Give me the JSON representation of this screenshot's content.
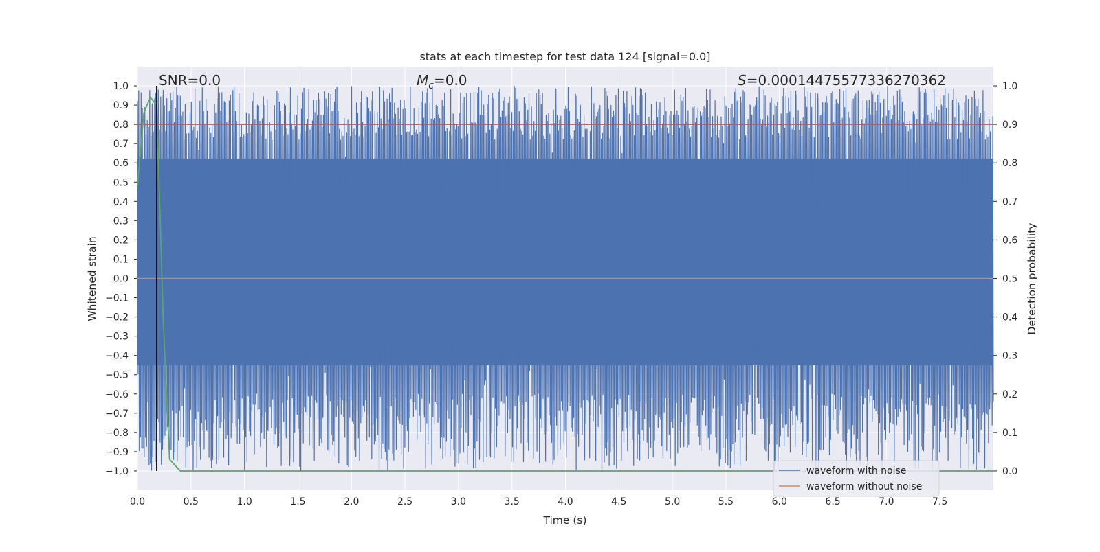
{
  "chart_data": {
    "type": "line",
    "title": "stats at each timestep for test data 124 [signal=0.0]",
    "xlabel": "Time (s)",
    "ylabel_left": "Whitened strain",
    "ylabel_right": "Detection probability",
    "xlim": [
      0.0,
      8.0
    ],
    "ylim_left": [
      -1.1,
      1.1
    ],
    "ylim_right": [
      -0.05,
      1.05
    ],
    "grid": true,
    "legend_position": "lower right",
    "x_ticks": [
      "0.0",
      "0.5",
      "1.0",
      "1.5",
      "2.0",
      "2.5",
      "3.0",
      "3.5",
      "4.0",
      "4.5",
      "5.0",
      "5.5",
      "6.0",
      "6.5",
      "7.0",
      "7.5"
    ],
    "y_left_ticks": [
      "1.0",
      "0.9",
      "0.8",
      "0.7",
      "0.6",
      "0.5",
      "0.4",
      "0.3",
      "0.2",
      "0.1",
      "0.0",
      "−0.1",
      "−0.2",
      "−0.3",
      "−0.4",
      "−0.5",
      "−0.6",
      "−0.7",
      "−0.8",
      "−0.9",
      "−1.0"
    ],
    "y_right_ticks": [
      "1.0",
      "0.9",
      "0.8",
      "0.7",
      "0.6",
      "0.5",
      "0.4",
      "0.3",
      "0.2",
      "0.1",
      "0.0"
    ],
    "annotations": {
      "snr": "SNR=0.0",
      "mc_symbol": "M",
      "mc_sub": "c",
      "mc_value": "=0.0",
      "s_symbol": "S",
      "s_value": "=0.00014475577336270362"
    },
    "vertical_marker_x": 0.18,
    "series": [
      {
        "name": "waveform with noise",
        "color": "#4c72b0",
        "axis": "left",
        "description": "dense noise trace spanning roughly -1.0 to 1.0 over 0-8 s",
        "x_range": [
          0.0,
          8.0
        ],
        "y_range": [
          -1.0,
          1.0
        ]
      },
      {
        "name": "waveform without noise",
        "color": "#dd8452",
        "axis": "left",
        "x": [
          0.0,
          8.0
        ],
        "y": [
          0.0,
          0.0
        ]
      },
      {
        "name": "",
        "color": "#c44e52",
        "axis": "right",
        "x": [
          0.0,
          8.0
        ],
        "y": [
          0.9,
          0.9
        ]
      },
      {
        "name": "",
        "color": "#55a868",
        "axis": "right",
        "x": [
          0.0,
          0.06,
          0.12,
          0.18,
          0.24,
          0.3,
          0.4,
          8.0
        ],
        "y": [
          0.74,
          0.93,
          0.97,
          0.95,
          0.4,
          0.03,
          0.0,
          0.0
        ]
      }
    ],
    "colors": {
      "axes_bg": "#eaeaf2",
      "grid": "#ffffff",
      "vertical_marker": "#000000",
      "text": "#262626"
    }
  }
}
